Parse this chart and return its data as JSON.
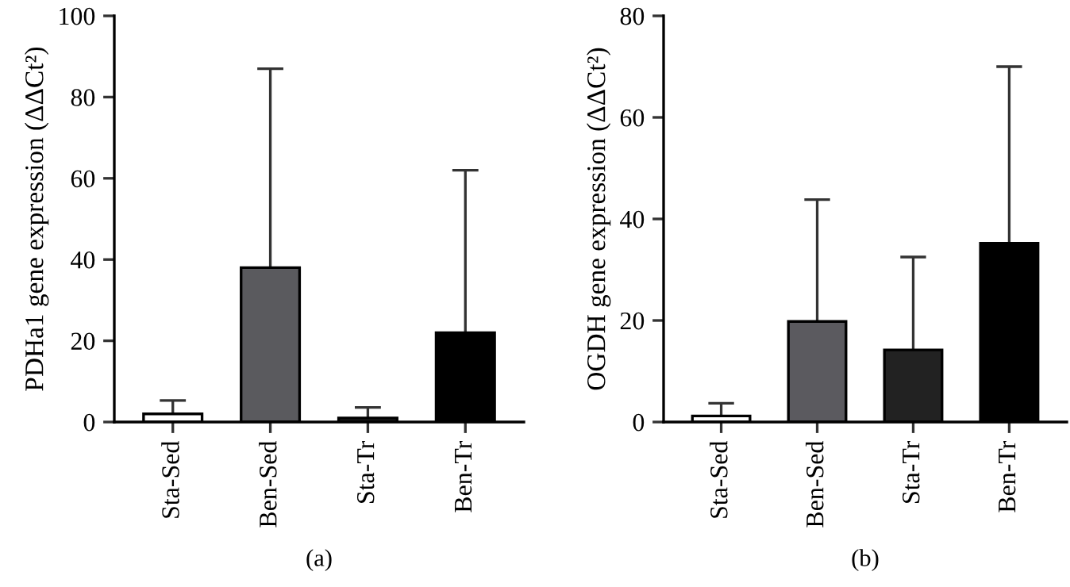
{
  "chart_data": [
    {
      "type": "bar",
      "categories": [
        "Sta-Sed",
        "Ben-Sed",
        "Sta-Tr",
        "Ben-Tr"
      ],
      "values": [
        2,
        38,
        1,
        22
      ],
      "colors": [
        "#ffffff",
        "#5a5a5e",
        "#1a1a1a",
        "#000000"
      ],
      "errors": [
        [
          2,
          5.3
        ],
        [
          38,
          87
        ],
        [
          1,
          3.6
        ],
        [
          22,
          62
        ]
      ],
      "ylabel": "PDHa1 gene expression (ΔΔCt²)",
      "ylim": [
        0,
        100
      ],
      "yticks": [
        0,
        20,
        40,
        60,
        80,
        100
      ],
      "annotations": [
        "(a)"
      ]
    },
    {
      "type": "bar",
      "categories": [
        "Sta-Sed",
        "Ben-Sed",
        "Sta-Tr",
        "Ben-Tr"
      ],
      "values": [
        1.2,
        19.8,
        14.2,
        35.2
      ],
      "colors": [
        "#ffffff",
        "#5b5a5f",
        "#222222",
        "#000000"
      ],
      "errors": [
        [
          1.2,
          3.7
        ],
        [
          19.8,
          43.8
        ],
        [
          14.2,
          32.5
        ],
        [
          35.2,
          70
        ]
      ],
      "ylabel": "OGDH gene expression (ΔΔCt²)",
      "ylim": [
        0,
        80
      ],
      "yticks": [
        0,
        20,
        40,
        60,
        80
      ],
      "annotations": [
        "(b)"
      ]
    }
  ]
}
